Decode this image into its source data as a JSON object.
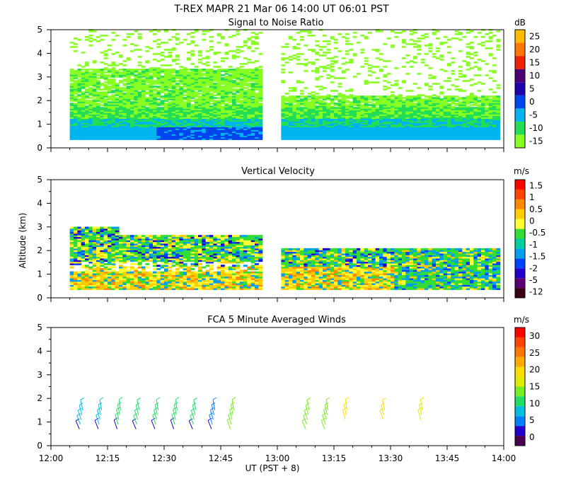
{
  "figure": {
    "title": "T-REX   MAPR 21 Mar 06   14:00 UT   06:01   PST",
    "ylabel": "Altitude (km)",
    "xlabel": "UT  (PST + 8)",
    "x_ticks": [
      "12:00",
      "12:15",
      "12:30",
      "12:45",
      "13:00",
      "13:15",
      "13:30",
      "13:45",
      "14:00"
    ]
  },
  "colors": {
    "snr": [
      "#88ff22",
      "#22dd55",
      "#00b4f0",
      "#0044ee",
      "#2200aa",
      "#4a0070",
      "#ee2200",
      "#ff7700",
      "#ffbb00"
    ],
    "vel": [
      "#3a001a",
      "#5a0070",
      "#2200cc",
      "#0040ff",
      "#00a0ee",
      "#00d0a0",
      "#33dd33",
      "#ffff33",
      "#ffcc00",
      "#ff8800",
      "#ff4400",
      "#ff0000"
    ],
    "wind": [
      "#4a0050",
      "#2200cc",
      "#0080ff",
      "#00c0e0",
      "#22dd66",
      "#77ee22",
      "#ddee00",
      "#ffdd00",
      "#ffaa00",
      "#ff7700",
      "#ff4400",
      "#ff0000"
    ]
  },
  "chart_data": [
    {
      "type": "heatmap",
      "title": "Signal to Noise Ratio",
      "units": "dB",
      "colorbar_ticks": [
        "25",
        "20",
        "15",
        "10",
        "5",
        "0",
        "-5",
        "-10",
        "-15"
      ],
      "x_range": [
        "12:00",
        "14:00"
      ],
      "ylim": [
        0,
        5
      ],
      "y_ticks": [
        "0",
        "1",
        "2",
        "3",
        "4",
        "5"
      ],
      "data_gaps": [
        [
          "12:56",
          "13:01"
        ]
      ],
      "data_extent_km": [
        0.35,
        5.0
      ]
    },
    {
      "type": "heatmap",
      "title": "Vertical Velocity",
      "units": "m/s",
      "colorbar_ticks": [
        "1.5",
        "1",
        "0.5",
        "0",
        "-0.5",
        "-1",
        "-1.5",
        "-2",
        "-5",
        "-12"
      ],
      "x_range": [
        "12:00",
        "14:00"
      ],
      "ylim": [
        0,
        5
      ],
      "y_ticks": [
        "0",
        "1",
        "2",
        "3",
        "4",
        "5"
      ],
      "data_gaps": [
        [
          "12:56",
          "13:01"
        ]
      ],
      "data_extent_km": [
        0.35,
        3.1
      ]
    },
    {
      "type": "scatter",
      "title": "FCA 5 Minute Averaged Winds",
      "units": "m/s",
      "colorbar_ticks": [
        "30",
        "25",
        "20",
        "15",
        "10",
        "5",
        "0"
      ],
      "ylim": [
        0,
        5
      ],
      "y_ticks": [
        "0",
        "1",
        "2",
        "3",
        "4",
        "5"
      ],
      "profiles": [
        {
          "time": "12:08",
          "speed_ms": 8
        },
        {
          "time": "12:13",
          "speed_ms": 8
        },
        {
          "time": "12:18",
          "speed_ms": 11
        },
        {
          "time": "12:23",
          "speed_ms": 11
        },
        {
          "time": "12:28",
          "speed_ms": 12
        },
        {
          "time": "12:33",
          "speed_ms": 11
        },
        {
          "time": "12:38",
          "speed_ms": 10
        },
        {
          "time": "12:43",
          "speed_ms": 6
        },
        {
          "time": "12:48",
          "speed_ms": 13
        },
        {
          "time": "13:08",
          "speed_ms": 13
        },
        {
          "time": "13:13",
          "speed_ms": 13
        },
        {
          "time": "13:18",
          "speed_ms": 18
        },
        {
          "time": "13:28",
          "speed_ms": 18
        },
        {
          "time": "13:38",
          "speed_ms": 16
        }
      ]
    }
  ]
}
